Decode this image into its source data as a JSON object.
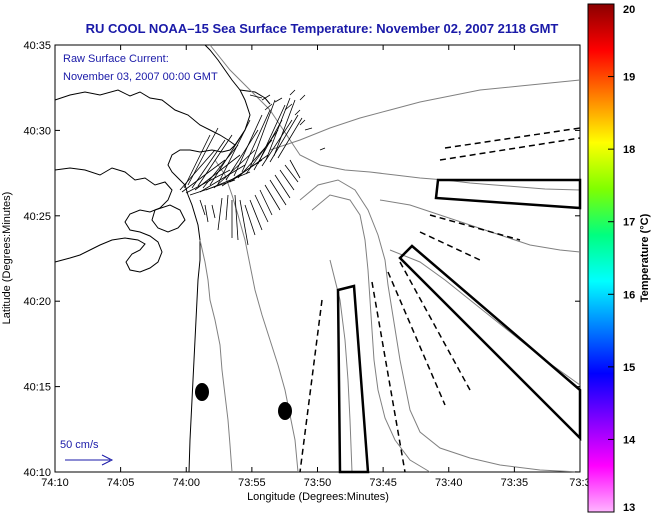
{
  "title": "RU COOL  NOAA–15  Sea Surface Temperature:  November 02, 2007 2118 GMT",
  "inset": {
    "line1": "Raw Surface Current:",
    "line2": "November 03, 2007 00:00 GMT"
  },
  "scale_label": "50 cm/s",
  "x_axis": {
    "label": "Longitude (Degrees:Minutes)",
    "ticks": [
      "74:10",
      "74:05",
      "74:00",
      "73:55",
      "73:50",
      "73:45",
      "73:40",
      "73:35",
      "73:3"
    ]
  },
  "y_axis": {
    "label": "Latitude (Degrees:Minutes)",
    "ticks": [
      "40:35",
      "40:30",
      "40:25",
      "40:20",
      "40:15",
      "40:10"
    ]
  },
  "colorbar": {
    "label": "Temperature (°C)",
    "ticks": [
      "20",
      "19",
      "18",
      "17",
      "16",
      "15",
      "14",
      "13"
    ],
    "colors": [
      "#8b0000",
      "#ff0000",
      "#ff8000",
      "#ffff00",
      "#80ff00",
      "#00ff80",
      "#00ffff",
      "#0080ff",
      "#0000ff",
      "#8000ff",
      "#ff00ff",
      "#ffb6ff"
    ]
  }
}
